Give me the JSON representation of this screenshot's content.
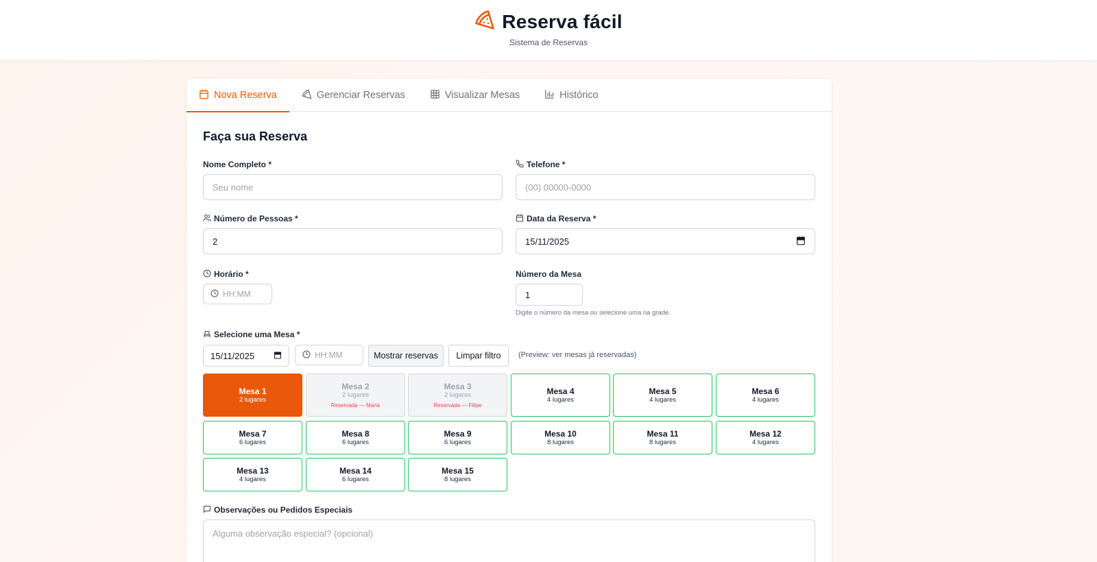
{
  "header": {
    "title": "Reserva fácil",
    "subtitle": "Sistema de Reservas",
    "icon": "pizza-icon",
    "accent": "#ea580c"
  },
  "tabs": [
    {
      "label": "Nova Reserva",
      "icon": "calendar-icon",
      "active": true
    },
    {
      "label": "Gerenciar Reservas",
      "icon": "pizza-icon",
      "active": false
    },
    {
      "label": "Visualizar Mesas",
      "icon": "grid-icon",
      "active": false
    },
    {
      "label": "Histórico",
      "icon": "bar-chart-icon",
      "active": false
    }
  ],
  "form": {
    "title": "Faça sua Reserva",
    "name": {
      "label": "Nome Completo *",
      "placeholder": "Seu nome"
    },
    "phone": {
      "label": "Telefone *",
      "placeholder": "(00) 00000-0000"
    },
    "people": {
      "label": "Número de Pessoas *",
      "value": "2"
    },
    "date": {
      "label": "Data da Reserva *",
      "value": "15/11/2025"
    },
    "time": {
      "label": "Horário *",
      "placeholder": "HH:MM"
    },
    "table_number": {
      "label": "Número da Mesa",
      "value": "1",
      "hint": "Digite o número da mesa ou selecione uma na grade."
    },
    "select_table": {
      "label": "Selecione uma Mesa *",
      "filter_date": "15/11/2025",
      "filter_time_placeholder": "HH:MM",
      "show_button": "Mostrar reservas",
      "clear_button": "Limpar filtro",
      "preview_note": "(Preview: ver mesas já reservadas)"
    },
    "tables": [
      {
        "name": "Mesa 1",
        "seats": "2 lugares",
        "status": "selected"
      },
      {
        "name": "Mesa 2",
        "seats": "2 lugares",
        "status": "reserved",
        "reserved_by": "Reservada — Maria"
      },
      {
        "name": "Mesa 3",
        "seats": "2 lugares",
        "status": "reserved",
        "reserved_by": "Reservada — Filipe"
      },
      {
        "name": "Mesa 4",
        "seats": "4 lugares",
        "status": "available"
      },
      {
        "name": "Mesa 5",
        "seats": "4 lugares",
        "status": "available"
      },
      {
        "name": "Mesa 6",
        "seats": "4 lugares",
        "status": "available"
      },
      {
        "name": "Mesa 7",
        "seats": "6 lugares",
        "status": "available"
      },
      {
        "name": "Mesa 8",
        "seats": "6 lugares",
        "status": "available"
      },
      {
        "name": "Mesa 9",
        "seats": "6 lugares",
        "status": "available"
      },
      {
        "name": "Mesa 10",
        "seats": "8 lugares",
        "status": "available"
      },
      {
        "name": "Mesa 11",
        "seats": "8 lugares",
        "status": "available"
      },
      {
        "name": "Mesa 12",
        "seats": "4 lugares",
        "status": "available"
      },
      {
        "name": "Mesa 13",
        "seats": "4 lugares",
        "status": "available"
      },
      {
        "name": "Mesa 14",
        "seats": "6 lugares",
        "status": "available"
      },
      {
        "name": "Mesa 15",
        "seats": "8 lugares",
        "status": "available"
      }
    ],
    "notes": {
      "label": "Observações ou Pedidos Especiais",
      "placeholder": "Alguma observação especial? (opcional)"
    }
  },
  "colors": {
    "accent": "#ea580c",
    "available_border": "#22c55e",
    "reserved_text": "#ef4444"
  }
}
